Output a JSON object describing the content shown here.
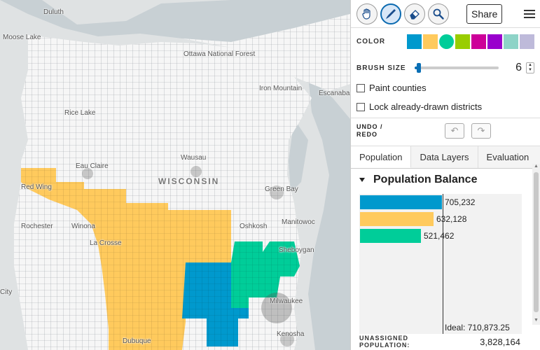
{
  "map": {
    "labels": {
      "duluth": "Duluth",
      "moose_lake": "Moose Lake",
      "ottawa": "Ottawa National Forest",
      "iron_mountain": "Iron Mountain",
      "escanaba": "Escanaba",
      "rice_lake": "Rice Lake",
      "eau_claire": "Eau Claire",
      "wisconsin": "WISCONSIN",
      "wausau": "Wausau",
      "green_bay": "Green Bay",
      "red_wing": "Red Wing",
      "rochester": "Rochester",
      "winona": "Winona",
      "la_crosse": "La Crosse",
      "oshkosh": "Oshkosh",
      "manitowoc": "Manitowoc",
      "sheboygan": "Sheboygan",
      "milwaukee": "Milwaukee",
      "city": "City",
      "dubuque": "Dubuque",
      "kenosha": "Kenosha"
    },
    "districts": [
      {
        "name": "district-1",
        "color": "#0099cd"
      },
      {
        "name": "district-2",
        "color": "#ffca5d"
      },
      {
        "name": "district-3",
        "color": "#00cd99"
      }
    ]
  },
  "toolbar": {
    "tools": [
      "pan-icon",
      "brush-icon",
      "eraser-icon",
      "inspect-icon"
    ],
    "active_tool": "brush-icon",
    "share_label": "Share"
  },
  "color": {
    "label": "COLOR",
    "swatches": [
      "#0099cd",
      "#ffca5d",
      "#00cd99",
      "#99cd00",
      "#cd0099",
      "#9900cd",
      "#8dd3c7",
      "#bebada"
    ],
    "selected_index": 2
  },
  "brush": {
    "label": "BRUSH SIZE",
    "value": "6",
    "fraction": 0.05
  },
  "options": {
    "paint_counties": "Paint counties",
    "lock_districts": "Lock already-drawn districts"
  },
  "undo": {
    "label_line1": "UNDO /",
    "label_line2": "REDO"
  },
  "tabs": [
    "Population",
    "Data Layers",
    "Evaluation"
  ],
  "population": {
    "title": "Population Balance",
    "bars": [
      {
        "value": 705232,
        "label": "705,232",
        "color": "#0099cd"
      },
      {
        "value": 632128,
        "label": "632,128",
        "color": "#ffca5d"
      },
      {
        "value": 521462,
        "label": "521,462",
        "color": "#00cd99"
      }
    ],
    "ideal": 710873.25,
    "ideal_label": "Ideal: 710,873.25",
    "unassigned_line1": "UNASSIGNED",
    "unassigned_line2": "POPULATION:",
    "unassigned_value": "3,828,164"
  }
}
